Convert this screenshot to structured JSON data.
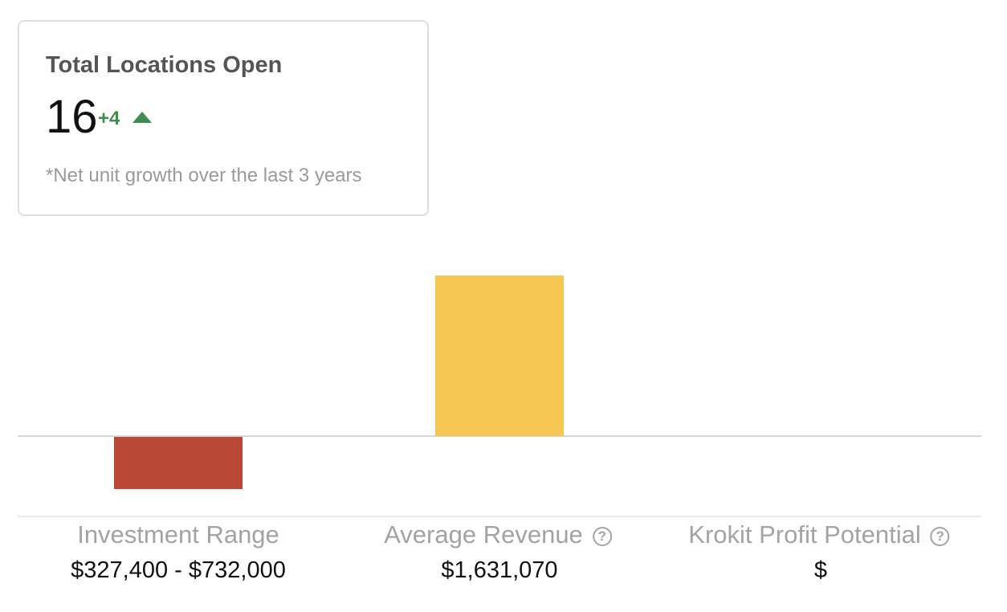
{
  "card": {
    "title": "Total Locations Open",
    "value": "16",
    "delta": "+4",
    "delta_icon": "triangle-up-icon",
    "note": "*Net unit growth over the last 3 years",
    "delta_color": "#3f8c4f"
  },
  "chart_data": {
    "type": "bar",
    "categories": [
      "Investment Range",
      "Average Revenue",
      "Krokit Profit Potential"
    ],
    "values": [
      -529700,
      1631070,
      0
    ],
    "value_labels": [
      "$327,400 - $732,000",
      "$1,631,070",
      "$"
    ],
    "colors": [
      "#b94735",
      "#f5c652",
      "#cccccc"
    ],
    "help_icons": [
      false,
      true,
      true
    ],
    "ylim": [
      -1000000,
      1650000
    ],
    "grid": false,
    "legend": "none"
  },
  "help_icon_glyph": "?"
}
